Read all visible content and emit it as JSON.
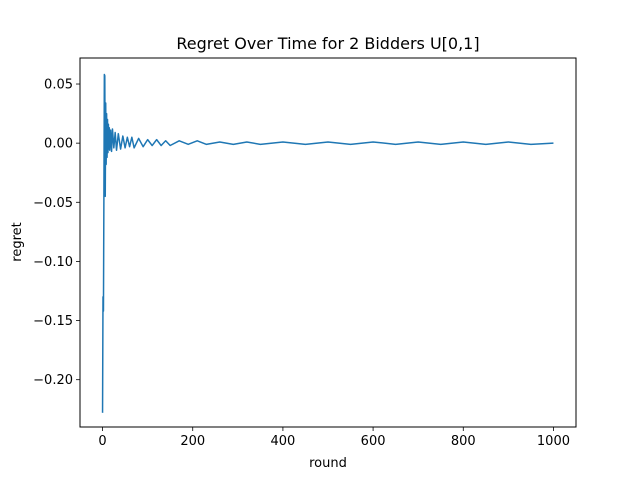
{
  "chart_data": {
    "type": "line",
    "title": "Regret Over Time for 2 Bidders U[0,1]",
    "xlabel": "round",
    "ylabel": "regret",
    "xlim": [
      -50,
      1050
    ],
    "ylim": [
      -0.24,
      0.072
    ],
    "x_ticks": [
      0,
      200,
      400,
      600,
      800,
      1000
    ],
    "y_ticks": [
      0.05,
      0.0,
      -0.05,
      -0.1,
      -0.15,
      -0.2
    ],
    "x_tick_labels": [
      "0",
      "200",
      "400",
      "600",
      "800",
      "1000"
    ],
    "y_tick_labels": [
      "0.05",
      "0.00",
      "−0.05",
      "−0.10",
      "−0.15",
      "−0.20"
    ],
    "grid": false,
    "legend": "none",
    "series": [
      {
        "color": "#1f77b4",
        "x": [
          0,
          1,
          2,
          3,
          4,
          5,
          6,
          7,
          8,
          9,
          10,
          11,
          12,
          13,
          14,
          15,
          16,
          18,
          20,
          22,
          25,
          28,
          31,
          35,
          40,
          45,
          50,
          55,
          60,
          65,
          70,
          80,
          90,
          100,
          110,
          120,
          130,
          140,
          150,
          170,
          190,
          210,
          230,
          260,
          290,
          320,
          350,
          400,
          450,
          500,
          550,
          600,
          650,
          700,
          750,
          800,
          850,
          900,
          950,
          1000
        ],
        "y": [
          -0.228,
          -0.13,
          -0.142,
          -0.045,
          0.058,
          0.057,
          -0.045,
          0.034,
          -0.018,
          0.025,
          -0.012,
          0.02,
          -0.008,
          0.016,
          -0.005,
          0.013,
          -0.006,
          0.011,
          -0.007,
          0.012,
          -0.004,
          0.009,
          -0.006,
          0.008,
          -0.005,
          0.006,
          -0.004,
          0.005,
          -0.003,
          0.005,
          -0.004,
          0.004,
          -0.003,
          0.003,
          -0.002,
          0.003,
          -0.002,
          0.002,
          -0.002,
          0.002,
          -0.001,
          0.002,
          -0.001,
          0.001,
          -0.001,
          0.001,
          -0.001,
          0.001,
          -0.001,
          0.001,
          -0.001,
          0.001,
          -0.001,
          0.001,
          -0.001,
          0.001,
          -0.001,
          0.001,
          -0.001,
          0.0
        ]
      }
    ]
  }
}
